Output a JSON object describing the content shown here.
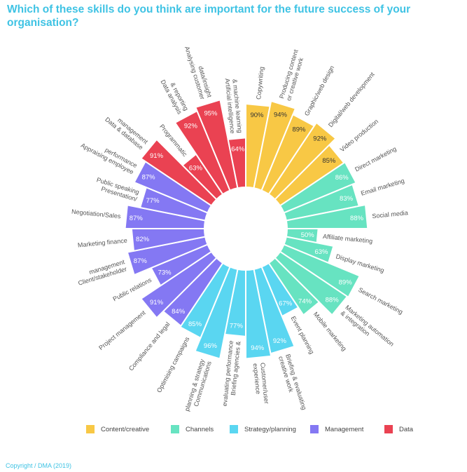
{
  "title": "Which of these skills do you think are important for the future success of your organisation?",
  "copyright": "Copyright / DMA (2019)",
  "chart_data": {
    "type": "radial-bar",
    "title": "Which of these skills do you think are important for the future success of your organisation?",
    "unit": "%",
    "legend": [
      {
        "name": "Content/creative",
        "color": "#f8c845"
      },
      {
        "name": "Channels",
        "color": "#67e3c1"
      },
      {
        "name": "Strategy/planning",
        "color": "#5ad6f1"
      },
      {
        "name": "Management",
        "color": "#8478f3"
      },
      {
        "name": "Data",
        "color": "#ea4252"
      }
    ],
    "legend_position": "bottom",
    "bars": [
      {
        "label": [
          "Copywriting"
        ],
        "value": 90,
        "group": "Content/creative"
      },
      {
        "label": [
          "Producing content",
          "or creative work"
        ],
        "value": 94,
        "group": "Content/creative"
      },
      {
        "label": [
          "Graphic/web design"
        ],
        "value": 89,
        "group": "Content/creative"
      },
      {
        "label": [
          "Digital/web development"
        ],
        "value": 92,
        "group": "Content/creative"
      },
      {
        "label": [
          "Video production"
        ],
        "value": 85,
        "group": "Content/creative"
      },
      {
        "label": [
          "Direct marketing"
        ],
        "value": 86,
        "group": "Channels"
      },
      {
        "label": [
          "Email marketing"
        ],
        "value": 83,
        "group": "Channels"
      },
      {
        "label": [
          "Social media"
        ],
        "value": 88,
        "group": "Channels"
      },
      {
        "label": [
          "Affiliate marketing"
        ],
        "value": 50,
        "group": "Channels"
      },
      {
        "label": [
          "Display marketing"
        ],
        "value": 63,
        "group": "Channels"
      },
      {
        "label": [
          "Search marketing"
        ],
        "value": 89,
        "group": "Channels"
      },
      {
        "label": [
          "Marketing automation",
          "& integration"
        ],
        "value": 88,
        "group": "Channels"
      },
      {
        "label": [
          "Mobile marketing"
        ],
        "value": 74,
        "group": "Channels"
      },
      {
        "label": [
          "Event planning"
        ],
        "value": 67,
        "group": "Strategy/planning"
      },
      {
        "label": [
          "Briefing & evaluating",
          "creative work"
        ],
        "value": 92,
        "group": "Strategy/planning"
      },
      {
        "label": [
          "Customer/user",
          "experience"
        ],
        "value": 94,
        "group": "Strategy/planning"
      },
      {
        "label": [
          "Briefing agencies &",
          "evaluating performance"
        ],
        "value": 77,
        "group": "Strategy/planning"
      },
      {
        "label": [
          "Communications",
          "planning & strategy"
        ],
        "value": 96,
        "group": "Strategy/planning"
      },
      {
        "label": [
          "Optimising campaigns"
        ],
        "value": 85,
        "group": "Strategy/planning"
      },
      {
        "label": [
          "Compliance and legal"
        ],
        "value": 84,
        "group": "Management"
      },
      {
        "label": [
          "Project management"
        ],
        "value": 91,
        "group": "Management"
      },
      {
        "label": [
          "Public relations"
        ],
        "value": 73,
        "group": "Management"
      },
      {
        "label": [
          "Client/stakeholder",
          "management"
        ],
        "value": 87,
        "group": "Management"
      },
      {
        "label": [
          "Marketing finance"
        ],
        "value": 82,
        "group": "Management"
      },
      {
        "label": [
          "Negotiation/Sales"
        ],
        "value": 87,
        "group": "Management"
      },
      {
        "label": [
          "Presentation/",
          "Public speaking"
        ],
        "value": 77,
        "group": "Management"
      },
      {
        "label": [
          "Appraising employee",
          "performance"
        ],
        "value": 87,
        "group": "Management"
      },
      {
        "label": [
          "Data & database",
          "management"
        ],
        "value": 91,
        "group": "Data"
      },
      {
        "label": [
          "Programmatic"
        ],
        "value": 63,
        "group": "Data"
      },
      {
        "label": [
          "Data analysis",
          "& reporting"
        ],
        "value": 92,
        "group": "Data"
      },
      {
        "label": [
          "Analysing customer",
          "data/insight"
        ],
        "value": 95,
        "group": "Data"
      },
      {
        "label": [
          "Artificial intelligence",
          "& machine learning"
        ],
        "value": 64,
        "group": "Data"
      }
    ]
  }
}
